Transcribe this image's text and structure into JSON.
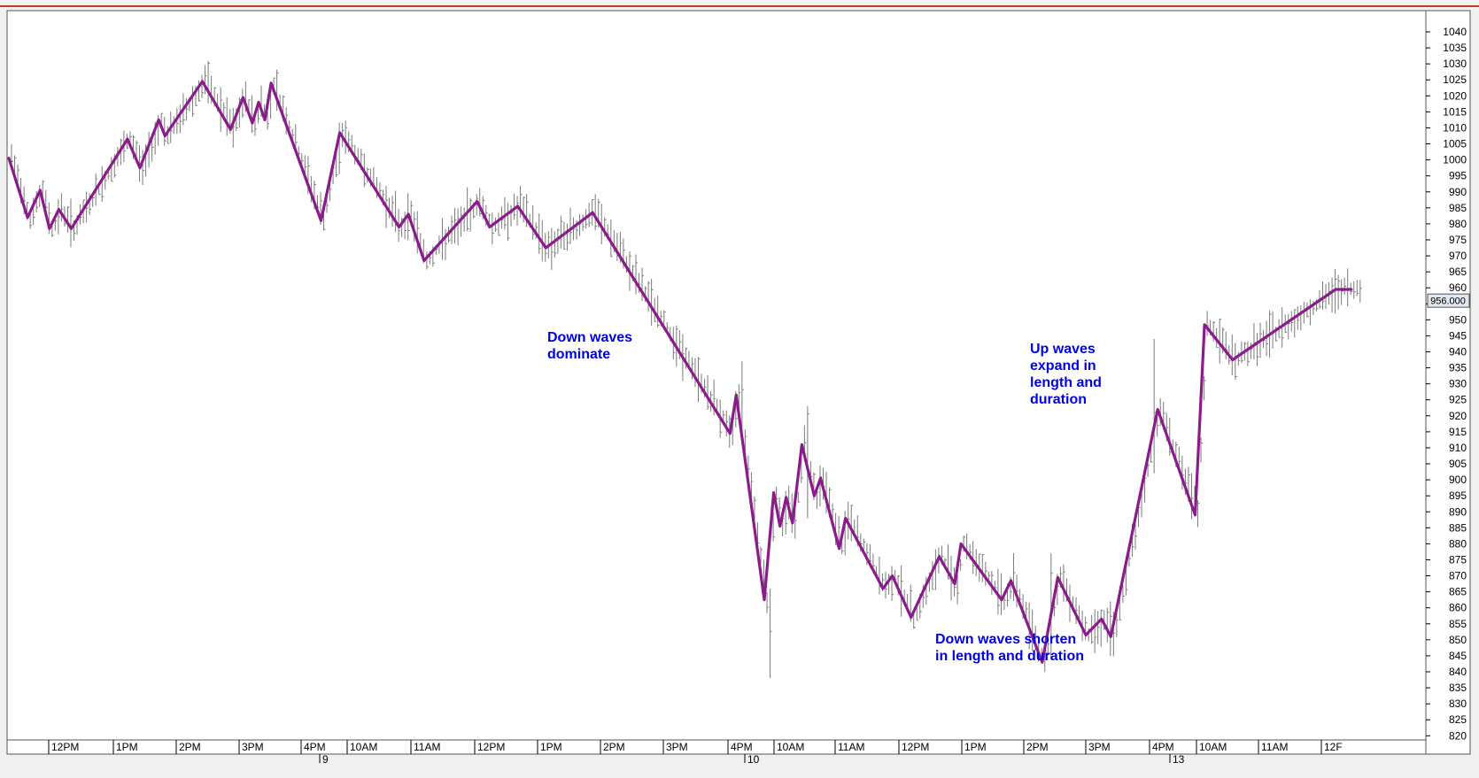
{
  "chart_data": {
    "type": "line",
    "subtype": "price bars with swing wave overlay",
    "y_axis": {
      "range": [
        818,
        1046
      ],
      "ticks": [
        1040,
        1035,
        1030,
        1025,
        1020,
        1015,
        1010,
        1005,
        1000,
        995,
        990,
        985,
        980,
        975,
        970,
        965,
        960,
        955,
        950,
        945,
        940,
        935,
        930,
        925,
        920,
        915,
        910,
        905,
        900,
        895,
        890,
        885,
        880,
        875,
        870,
        865,
        860,
        855,
        850,
        845,
        840,
        835,
        830,
        825,
        820
      ],
      "position": "right"
    },
    "x_axis": {
      "time_labels": [
        "12PM",
        "1PM",
        "2PM",
        "3PM",
        "4PM",
        "10AM",
        "11AM",
        "12PM",
        "1PM",
        "2PM",
        "3PM",
        "4PM",
        "10AM",
        "11AM",
        "12PM",
        "1PM",
        "2PM",
        "3PM",
        "4PM",
        "10AM",
        "11AM",
        "12F"
      ],
      "date_labels": [
        "9",
        "10",
        "13"
      ]
    },
    "last_price_badge": "956.000",
    "wave_series": {
      "name": "",
      "color": "#8b1a8b",
      "points": [
        [
          0,
          1000.5
        ],
        [
          6,
          982
        ],
        [
          10,
          990.5
        ],
        [
          13,
          978.5
        ],
        [
          16,
          984.5
        ],
        [
          20,
          978.5
        ],
        [
          38,
          1006.5
        ],
        [
          42,
          997.5
        ],
        [
          48,
          1012.5
        ],
        [
          50,
          1007.5
        ],
        [
          62,
          1024.5
        ],
        [
          71,
          1009.5
        ],
        [
          75,
          1019.5
        ],
        [
          78,
          1011.5
        ],
        [
          80,
          1018
        ],
        [
          82,
          1012.5
        ],
        [
          84,
          1024
        ],
        [
          100,
          981
        ],
        [
          106,
          1008.5
        ],
        [
          125,
          979
        ],
        [
          128,
          983
        ],
        [
          133,
          968.5
        ],
        [
          150,
          987
        ],
        [
          154,
          979
        ],
        [
          163,
          985.5
        ],
        [
          172,
          972.5
        ],
        [
          187,
          983.5
        ],
        [
          231,
          914.5
        ],
        [
          233,
          926.5
        ],
        [
          242,
          862.5
        ],
        [
          245,
          896
        ],
        [
          247,
          885.5
        ],
        [
          249,
          894.5
        ],
        [
          251,
          886.5
        ],
        [
          254,
          911
        ],
        [
          258,
          895
        ],
        [
          260,
          900.5
        ],
        [
          266,
          878.5
        ],
        [
          268,
          888
        ],
        [
          280,
          866
        ],
        [
          283,
          870
        ],
        [
          289,
          857
        ],
        [
          298,
          876
        ],
        [
          303,
          867.5
        ],
        [
          305,
          880
        ],
        [
          318,
          862.5
        ],
        [
          321,
          868.5
        ],
        [
          331,
          843
        ],
        [
          336,
          869.5
        ],
        [
          345,
          851.5
        ],
        [
          350,
          856.5
        ],
        [
          353,
          851
        ],
        [
          368,
          922
        ],
        [
          380,
          889
        ],
        [
          383,
          948.5
        ],
        [
          392,
          937.5
        ],
        [
          425,
          959.5
        ],
        [
          430,
          959.5
        ]
      ]
    },
    "bar_series": {
      "name": "",
      "color": "#7a7a7a"
    },
    "annotations": [
      {
        "text_lines": [
          "Down waves",
          "dominate"
        ]
      },
      {
        "text_lines": [
          "Up waves",
          "expand in",
          "length and",
          "duration"
        ]
      },
      {
        "text_lines": [
          "Down waves shorten",
          "in length and duration"
        ]
      }
    ],
    "grid": false
  }
}
